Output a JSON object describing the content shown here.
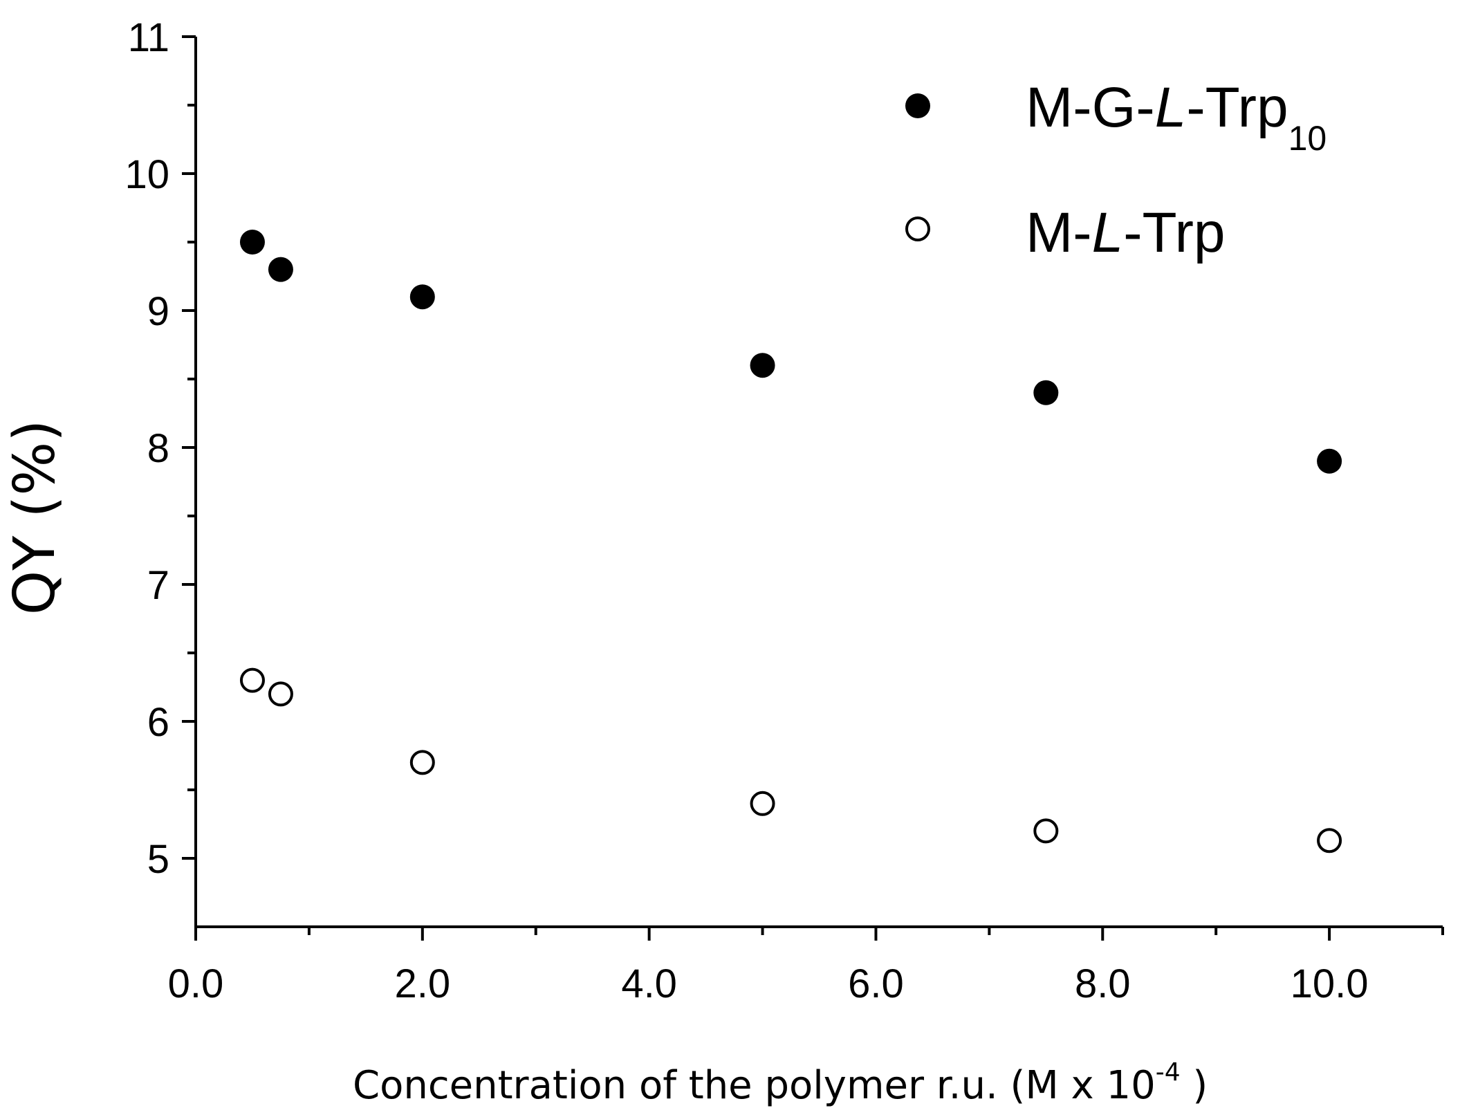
{
  "chart_data": {
    "type": "scatter",
    "xlabel": {
      "main": "Concentration of the polymer r.u. (M x 10",
      "superscript": "-4",
      "close": " )"
    },
    "ylabel": "QY (%)",
    "xlim": [
      0,
      11
    ],
    "ylim": [
      4.5,
      11
    ],
    "x_ticks": [
      0,
      2,
      4,
      6,
      8,
      10
    ],
    "x_tick_labels": [
      "0.0",
      "2.0",
      "4.0",
      "6.0",
      "8.0",
      "10.0"
    ],
    "x_minor_ticks": [
      1,
      3,
      5,
      7,
      9,
      11
    ],
    "y_ticks": [
      5,
      6,
      7,
      8,
      9,
      10,
      11
    ],
    "y_tick_labels": [
      "5",
      "6",
      "7",
      "8",
      "9",
      "10",
      "11"
    ],
    "y_minor_ticks": [
      5.5,
      6.5,
      7.5,
      8.5,
      9.5,
      10.5
    ],
    "grid": false,
    "legend_position": "top-right",
    "series": [
      {
        "name_parts": {
          "prefix": "M-G-",
          "italic": "L",
          "suffix": "-Trp",
          "subscript": "10"
        },
        "marker": "filled-circle",
        "color": "#000000",
        "x": [
          0.5,
          0.75,
          2.0,
          5.0,
          7.5,
          10.0
        ],
        "y": [
          9.5,
          9.3,
          9.1,
          8.6,
          8.4,
          7.9
        ]
      },
      {
        "name_parts": {
          "prefix": "M-",
          "italic": "L",
          "suffix": "-Trp",
          "subscript": ""
        },
        "marker": "open-circle",
        "color": "#000000",
        "x": [
          0.5,
          0.75,
          2.0,
          5.0,
          7.5,
          10.0
        ],
        "y": [
          6.3,
          6.2,
          5.7,
          5.4,
          5.2,
          5.13
        ]
      }
    ]
  }
}
